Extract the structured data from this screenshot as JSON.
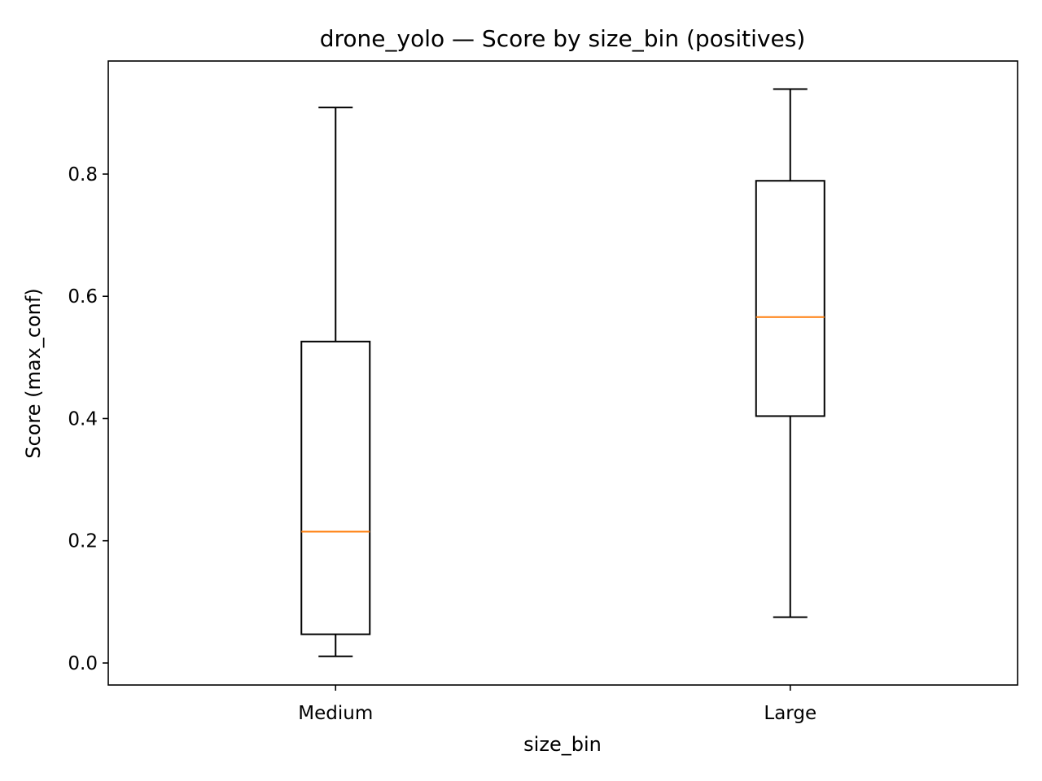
{
  "chart_data": {
    "type": "box",
    "title": "drone_yolo — Score by size_bin (positives)",
    "xlabel": "size_bin",
    "ylabel": "Score (max_conf)",
    "ylim": [
      -0.036,
      0.985
    ],
    "yticks": [
      0.0,
      0.2,
      0.4,
      0.6,
      0.8
    ],
    "ytick_labels": [
      "0.0",
      "0.2",
      "0.4",
      "0.6",
      "0.8"
    ],
    "categories": [
      "Medium",
      "Large"
    ],
    "boxes": [
      {
        "category": "Medium",
        "whisker_low": 0.011,
        "q1": 0.047,
        "median": 0.215,
        "q3": 0.526,
        "whisker_high": 0.909
      },
      {
        "category": "Large",
        "whisker_low": 0.075,
        "q1": 0.404,
        "median": 0.566,
        "q3": 0.789,
        "whisker_high": 0.939
      }
    ],
    "colors": {
      "box": "#000000",
      "median": "#ff7f0e"
    },
    "grid": false,
    "legend": "none"
  }
}
